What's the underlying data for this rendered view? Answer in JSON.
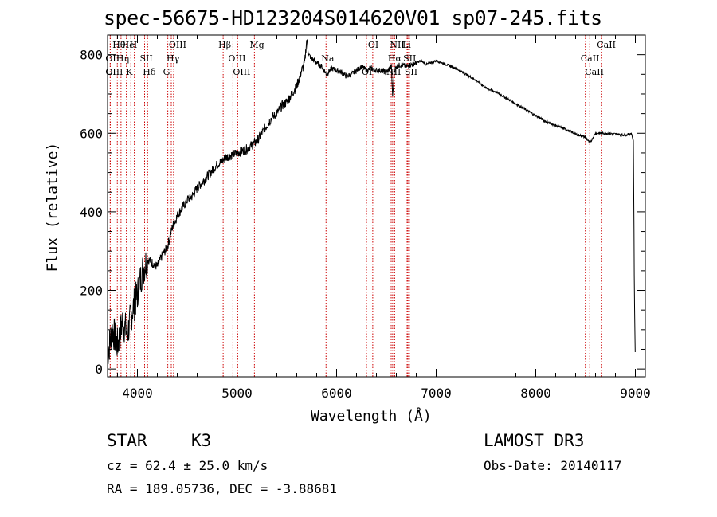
{
  "title": "spec-56675-HD123204S014620V01_sp07-245.fits",
  "object_class": "STAR",
  "subclass": "K3",
  "survey": "LAMOST DR3",
  "cz_text": "cz = 62.4 ± 25.0 km/s",
  "obs_date": "Obs-Date: 20140117",
  "radec_text": "RA = 189.05736, DEC =  -3.88681",
  "chart_data": {
    "type": "line",
    "title": "spec-56675-HD123204S014620V01_sp07-245.fits",
    "xlabel": "Wavelength (Å)",
    "ylabel": "Flux (relative)",
    "xlim": [
      3700,
      9100
    ],
    "ylim": [
      -20,
      850
    ],
    "xticks": [
      4000,
      5000,
      6000,
      7000,
      8000,
      9000
    ],
    "yticks": [
      0,
      200,
      400,
      600,
      800
    ],
    "spectrum": {
      "x": [
        3700,
        3750,
        3800,
        3850,
        3900,
        3950,
        4000,
        4050,
        4100,
        4150,
        4200,
        4250,
        4300,
        4350,
        4400,
        4450,
        4500,
        4550,
        4600,
        4650,
        4700,
        4750,
        4800,
        4850,
        4900,
        4950,
        5000,
        5050,
        5100,
        5150,
        5200,
        5250,
        5300,
        5350,
        5400,
        5450,
        5500,
        5550,
        5600,
        5650,
        5680,
        5700,
        5720,
        5750,
        5800,
        5850,
        5900,
        5950,
        6000,
        6050,
        6100,
        6150,
        6200,
        6250,
        6300,
        6350,
        6400,
        6450,
        6500,
        6550,
        6563,
        6580,
        6600,
        6650,
        6700,
        6750,
        6800,
        6850,
        6900,
        6950,
        7000,
        7100,
        7200,
        7300,
        7400,
        7500,
        7600,
        7700,
        7800,
        7900,
        8000,
        8100,
        8200,
        8300,
        8400,
        8500,
        8542,
        8600,
        8700,
        8800,
        8900,
        8960,
        8980,
        8990,
        9000
      ],
      "y": [
        40,
        100,
        60,
        120,
        90,
        150,
        190,
        250,
        280,
        270,
        260,
        290,
        310,
        360,
        390,
        410,
        430,
        440,
        460,
        475,
        490,
        505,
        520,
        530,
        540,
        545,
        550,
        555,
        560,
        570,
        580,
        600,
        620,
        640,
        650,
        670,
        680,
        700,
        720,
        760,
        780,
        840,
        800,
        790,
        780,
        770,
        750,
        765,
        760,
        755,
        745,
        750,
        760,
        770,
        760,
        765,
        760,
        760,
        755,
        770,
        690,
        760,
        770,
        775,
        770,
        775,
        780,
        785,
        775,
        780,
        785,
        775,
        765,
        750,
        735,
        715,
        705,
        690,
        675,
        660,
        645,
        630,
        620,
        610,
        598,
        590,
        575,
        600,
        600,
        598,
        595,
        600,
        580,
        200,
        0
      ]
    },
    "lines": [
      {
        "label": "Hθ",
        "wave": 3798
      },
      {
        "label": "OII",
        "wave": 3727
      },
      {
        "label": "OIII",
        "wave": 3727
      },
      {
        "label": "He",
        "wave": 3889
      },
      {
        "label": "Hη",
        "wave": 3835
      },
      {
        "label": "K",
        "wave": 3934
      },
      {
        "label": "H",
        "wave": 3969
      },
      {
        "label": "SII",
        "wave": 4072
      },
      {
        "label": "Hδ",
        "wave": 4102
      },
      {
        "label": "OIII",
        "wave": 4363
      },
      {
        "label": "Hγ",
        "wave": 4340
      },
      {
        "label": "G",
        "wave": 4305
      },
      {
        "label": "Hβ",
        "wave": 4861
      },
      {
        "label": "OIII",
        "wave": 4959
      },
      {
        "label": "OIII",
        "wave": 5007
      },
      {
        "label": "Mg",
        "wave": 5175
      },
      {
        "label": "Na",
        "wave": 5894
      },
      {
        "label": "OI",
        "wave": 6300
      },
      {
        "label": "OI",
        "wave": 6363
      },
      {
        "label": "Hα",
        "wave": 6563
      },
      {
        "label": "NII",
        "wave": 6548
      },
      {
        "label": "NII",
        "wave": 6583
      },
      {
        "label": "SII",
        "wave": 6717
      },
      {
        "label": "SII",
        "wave": 6731
      },
      {
        "label": "Li",
        "wave": 6708
      },
      {
        "label": "CaII",
        "wave": 8498
      },
      {
        "label": "CaII",
        "wave": 8542
      },
      {
        "label": "CaII",
        "wave": 8662
      }
    ]
  }
}
